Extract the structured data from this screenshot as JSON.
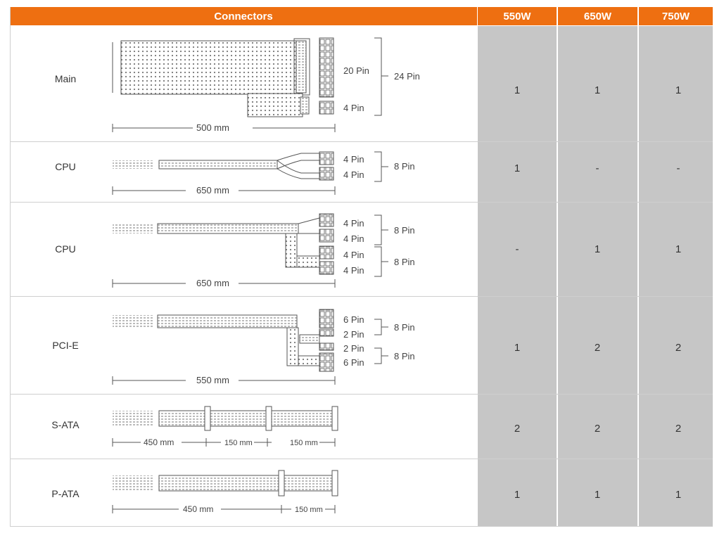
{
  "header": {
    "connectors": "Connectors",
    "models": [
      "550W",
      "650W",
      "750W"
    ]
  },
  "rows": [
    {
      "name": "Main",
      "pins": [
        "20 Pin",
        "4 Pin"
      ],
      "total": [
        "24 Pin"
      ],
      "lengths": [
        "500 mm"
      ],
      "values": [
        "1",
        "1",
        "1"
      ]
    },
    {
      "name": "CPU",
      "pins": [
        "4 Pin",
        "4 Pin"
      ],
      "total": [
        "8 Pin"
      ],
      "lengths": [
        "650 mm"
      ],
      "values": [
        "1",
        "-",
        "-"
      ]
    },
    {
      "name": "CPU",
      "pins": [
        "4 Pin",
        "4 Pin",
        "4 Pin",
        "4 Pin"
      ],
      "total": [
        "8 Pin",
        "8 Pin"
      ],
      "lengths": [
        "650 mm"
      ],
      "values": [
        "-",
        "1",
        "1"
      ]
    },
    {
      "name": "PCI-E",
      "pins": [
        "6 Pin",
        "2 Pin",
        "2 Pin",
        "6 Pin"
      ],
      "total": [
        "8 Pin",
        "8 Pin"
      ],
      "lengths": [
        "550 mm"
      ],
      "values": [
        "1",
        "2",
        "2"
      ]
    },
    {
      "name": "S-ATA",
      "lengths": [
        "450 mm",
        "150 mm",
        "150 mm"
      ],
      "values": [
        "2",
        "2",
        "2"
      ]
    },
    {
      "name": "P-ATA",
      "lengths": [
        "450 mm",
        "150 mm"
      ],
      "values": [
        "1",
        "1",
        "1"
      ]
    }
  ],
  "colors": {
    "header": "#ee6f11",
    "value_bg": "#c6c6c6",
    "grid": "#cfcfcf"
  }
}
